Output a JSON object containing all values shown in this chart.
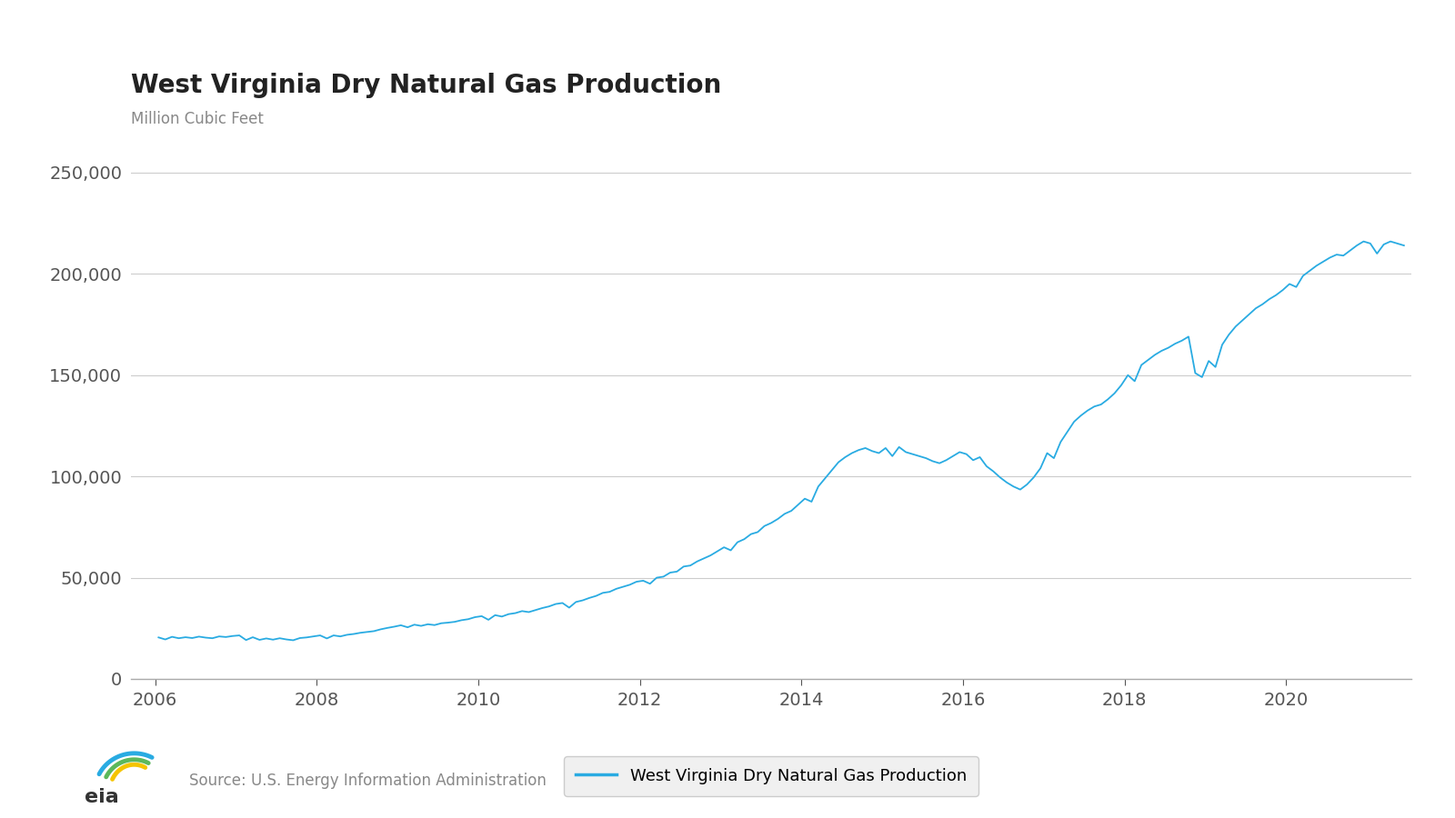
{
  "title": "West Virginia Dry Natural Gas Production",
  "ylabel": "Million Cubic Feet",
  "legend_label": "West Virginia Dry Natural Gas Production",
  "source_text": "Source: U.S. Energy Information Administration",
  "line_color": "#29ABE2",
  "background_color": "#FFFFFF",
  "grid_color": "#CCCCCC",
  "ylim": [
    0,
    262500
  ],
  "yticks": [
    0,
    50000,
    100000,
    150000,
    200000,
    250000
  ],
  "xlim_start": 2005.7,
  "xlim_end": 2021.55,
  "xticks": [
    2006,
    2008,
    2010,
    2012,
    2014,
    2016,
    2018,
    2020
  ],
  "data": {
    "2006-01": 20500,
    "2006-02": 19500,
    "2006-03": 20800,
    "2006-04": 20100,
    "2006-05": 20600,
    "2006-06": 20200,
    "2006-07": 20900,
    "2006-08": 20400,
    "2006-09": 20100,
    "2006-10": 21000,
    "2006-11": 20700,
    "2006-12": 21200,
    "2007-01": 21500,
    "2007-02": 19200,
    "2007-03": 20600,
    "2007-04": 19300,
    "2007-05": 20000,
    "2007-06": 19400,
    "2007-07": 20100,
    "2007-08": 19500,
    "2007-09": 19100,
    "2007-10": 20200,
    "2007-11": 20500,
    "2007-12": 21000,
    "2008-01": 21500,
    "2008-02": 20000,
    "2008-03": 21500,
    "2008-04": 21000,
    "2008-05": 21800,
    "2008-06": 22200,
    "2008-07": 22800,
    "2008-08": 23200,
    "2008-09": 23600,
    "2008-10": 24500,
    "2008-11": 25200,
    "2008-12": 25800,
    "2009-01": 26500,
    "2009-02": 25500,
    "2009-03": 26800,
    "2009-04": 26200,
    "2009-05": 27000,
    "2009-06": 26600,
    "2009-07": 27500,
    "2009-08": 27800,
    "2009-09": 28200,
    "2009-10": 29000,
    "2009-11": 29500,
    "2009-12": 30500,
    "2010-01": 31000,
    "2010-02": 29200,
    "2010-03": 31500,
    "2010-04": 30800,
    "2010-05": 32000,
    "2010-06": 32500,
    "2010-07": 33500,
    "2010-08": 33000,
    "2010-09": 34000,
    "2010-10": 35000,
    "2010-11": 35800,
    "2010-12": 37000,
    "2011-01": 37500,
    "2011-02": 35200,
    "2011-03": 38000,
    "2011-04": 38800,
    "2011-05": 40000,
    "2011-06": 41000,
    "2011-07": 42500,
    "2011-08": 43000,
    "2011-09": 44500,
    "2011-10": 45500,
    "2011-11": 46500,
    "2011-12": 48000,
    "2012-01": 48500,
    "2012-02": 47000,
    "2012-03": 50000,
    "2012-04": 50500,
    "2012-05": 52500,
    "2012-06": 53000,
    "2012-07": 55500,
    "2012-08": 56000,
    "2012-09": 58000,
    "2012-10": 59500,
    "2012-11": 61000,
    "2012-12": 63000,
    "2013-01": 65000,
    "2013-02": 63500,
    "2013-03": 67500,
    "2013-04": 69000,
    "2013-05": 71500,
    "2013-06": 72500,
    "2013-07": 75500,
    "2013-08": 77000,
    "2013-09": 79000,
    "2013-10": 81500,
    "2013-11": 83000,
    "2013-12": 86000,
    "2014-01": 89000,
    "2014-02": 87500,
    "2014-03": 95000,
    "2014-04": 99000,
    "2014-05": 103000,
    "2014-06": 107000,
    "2014-07": 109500,
    "2014-08": 111500,
    "2014-09": 113000,
    "2014-10": 114000,
    "2014-11": 112500,
    "2014-12": 111500,
    "2015-01": 114000,
    "2015-02": 110000,
    "2015-03": 114500,
    "2015-04": 112000,
    "2015-05": 111000,
    "2015-06": 110000,
    "2015-07": 109000,
    "2015-08": 107500,
    "2015-09": 106500,
    "2015-10": 108000,
    "2015-11": 110000,
    "2015-12": 112000,
    "2016-01": 111000,
    "2016-02": 108000,
    "2016-03": 109500,
    "2016-04": 105000,
    "2016-05": 102500,
    "2016-06": 99500,
    "2016-07": 97000,
    "2016-08": 95000,
    "2016-09": 93500,
    "2016-10": 96000,
    "2016-11": 99500,
    "2016-12": 104000,
    "2017-01": 111500,
    "2017-02": 109000,
    "2017-03": 117000,
    "2017-04": 122000,
    "2017-05": 127000,
    "2017-06": 130000,
    "2017-07": 132500,
    "2017-08": 134500,
    "2017-09": 135500,
    "2017-10": 138000,
    "2017-11": 141000,
    "2017-12": 145000,
    "2018-01": 150000,
    "2018-02": 147000,
    "2018-03": 155000,
    "2018-04": 157500,
    "2018-05": 160000,
    "2018-06": 162000,
    "2018-07": 163500,
    "2018-08": 165500,
    "2018-09": 167000,
    "2018-10": 169000,
    "2018-11": 151000,
    "2018-12": 149000,
    "2019-01": 157000,
    "2019-02": 154000,
    "2019-03": 165000,
    "2019-04": 170000,
    "2019-05": 174000,
    "2019-06": 177000,
    "2019-07": 180000,
    "2019-08": 183000,
    "2019-09": 185000,
    "2019-10": 187500,
    "2019-11": 189500,
    "2019-12": 192000,
    "2020-01": 195000,
    "2020-02": 193500,
    "2020-03": 199000,
    "2020-04": 201500,
    "2020-05": 204000,
    "2020-06": 206000,
    "2020-07": 208000,
    "2020-08": 209500,
    "2020-09": 209000,
    "2020-10": 211500,
    "2020-11": 214000,
    "2020-12": 216000,
    "2021-01": 215000,
    "2021-02": 210000,
    "2021-03": 214500,
    "2021-04": 216000,
    "2021-05": 215000,
    "2021-06": 214000
  }
}
